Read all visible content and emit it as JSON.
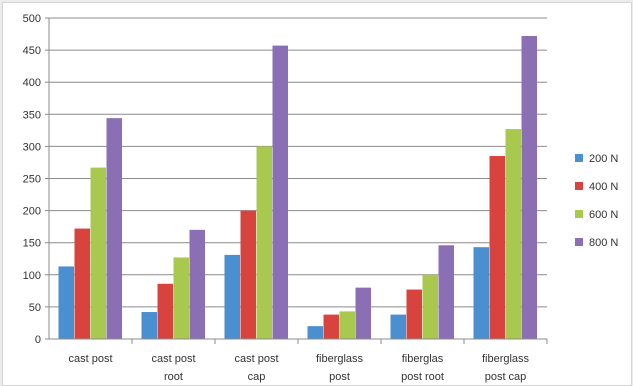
{
  "chart_data": {
    "type": "bar",
    "categories": [
      [
        "cast post"
      ],
      [
        "cast post",
        "root"
      ],
      [
        "cast post",
        "cap"
      ],
      [
        "fiberglass",
        "post"
      ],
      [
        "fiberglas",
        "post root"
      ],
      [
        "fiberglass",
        "post cap"
      ]
    ],
    "series": [
      {
        "name": "200 N",
        "color": "#4a8fcf",
        "values": [
          113,
          42,
          131,
          20,
          38,
          143
        ]
      },
      {
        "name": "400 N",
        "color": "#d9433d",
        "values": [
          172,
          86,
          200,
          38,
          77,
          285
        ]
      },
      {
        "name": "600 N",
        "color": "#a8c84e",
        "values": [
          267,
          127,
          300,
          43,
          100,
          327
        ]
      },
      {
        "name": "800 N",
        "color": "#8a6fb5",
        "values": [
          344,
          170,
          457,
          80,
          146,
          472
        ]
      }
    ],
    "ylim": [
      0,
      500
    ],
    "yticks": [
      0,
      50,
      100,
      150,
      200,
      250,
      300,
      350,
      400,
      450,
      500
    ],
    "grid": true,
    "legend": "right",
    "title": "",
    "xlabel": "",
    "ylabel": ""
  }
}
